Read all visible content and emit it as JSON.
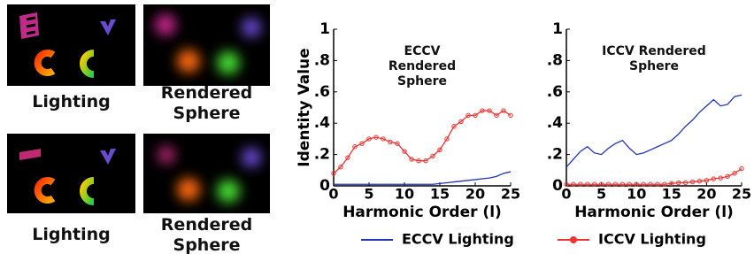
{
  "image_panels": [
    {
      "caption": "Lighting"
    },
    {
      "caption": "Rendered Sphere"
    },
    {
      "caption": "Lighting"
    },
    {
      "caption": "Rendered Sphere"
    }
  ],
  "chart_data": [
    {
      "type": "line",
      "title": "ECCV Rendered Sphere",
      "xlabel": "Harmonic Order (l)",
      "ylabel": "Identity Value",
      "x": [
        0,
        1,
        2,
        3,
        4,
        5,
        6,
        7,
        8,
        9,
        10,
        11,
        12,
        13,
        14,
        15,
        16,
        17,
        18,
        19,
        20,
        21,
        22,
        23,
        24,
        25
      ],
      "series": [
        {
          "name": "ECCV Lighting",
          "color": "#2233bb",
          "marker": null,
          "values": [
            0.01,
            0.01,
            0.01,
            0.01,
            0.01,
            0.01,
            0.01,
            0.01,
            0.01,
            0.01,
            0.01,
            0.01,
            0.01,
            0.01,
            0.01,
            0.015,
            0.02,
            0.025,
            0.03,
            0.035,
            0.04,
            0.045,
            0.05,
            0.06,
            0.08,
            0.09
          ]
        },
        {
          "name": "ICCV Lighting",
          "color": "#ee3333",
          "marker": "o",
          "values": [
            0.08,
            0.12,
            0.18,
            0.25,
            0.27,
            0.3,
            0.31,
            0.3,
            0.28,
            0.27,
            0.22,
            0.17,
            0.16,
            0.16,
            0.19,
            0.23,
            0.3,
            0.38,
            0.41,
            0.45,
            0.45,
            0.48,
            0.48,
            0.45,
            0.48,
            0.45
          ]
        }
      ],
      "xlim": [
        0,
        25
      ],
      "xticks": [
        0,
        5,
        10,
        15,
        20,
        25
      ],
      "ylim": [
        0,
        1
      ],
      "yticks": [
        0,
        {
          "value": 0.2,
          "label": ".2"
        },
        {
          "value": 0.4,
          "label": ".4"
        },
        {
          "value": 0.6,
          "label": ".6"
        },
        {
          "value": 0.8,
          "label": ".8"
        },
        1
      ]
    },
    {
      "type": "line",
      "title": "ICCV Rendered Sphere",
      "xlabel": "Harmonic Order (l)",
      "x": [
        0,
        1,
        2,
        3,
        4,
        5,
        6,
        7,
        8,
        9,
        10,
        11,
        12,
        13,
        14,
        15,
        16,
        17,
        18,
        19,
        20,
        21,
        22,
        23,
        24,
        25
      ],
      "series": [
        {
          "name": "ECCV Lighting",
          "color": "#2233bb",
          "marker": null,
          "values": [
            0.12,
            0.17,
            0.22,
            0.25,
            0.21,
            0.2,
            0.24,
            0.27,
            0.29,
            0.24,
            0.2,
            0.21,
            0.23,
            0.25,
            0.27,
            0.29,
            0.33,
            0.38,
            0.42,
            0.47,
            0.51,
            0.55,
            0.51,
            0.52,
            0.57,
            0.58
          ]
        },
        {
          "name": "ICCV Lighting",
          "color": "#ee3333",
          "marker": "o",
          "values": [
            0.01,
            0.01,
            0.01,
            0.01,
            0.01,
            0.01,
            0.01,
            0.01,
            0.01,
            0.01,
            0.01,
            0.01,
            0.01,
            0.01,
            0.01,
            0.015,
            0.02,
            0.02,
            0.025,
            0.03,
            0.035,
            0.045,
            0.05,
            0.06,
            0.08,
            0.11
          ]
        }
      ],
      "xlim": [
        0,
        25
      ],
      "xticks": [
        0,
        5,
        10,
        15,
        20,
        25
      ],
      "ylim": [
        0,
        1
      ],
      "yticks": [
        0,
        {
          "value": 0.2,
          "label": ".2"
        },
        {
          "value": 0.4,
          "label": ".4"
        },
        {
          "value": 0.6,
          "label": ".6"
        },
        {
          "value": 0.8,
          "label": ".8"
        },
        1
      ]
    }
  ]
}
